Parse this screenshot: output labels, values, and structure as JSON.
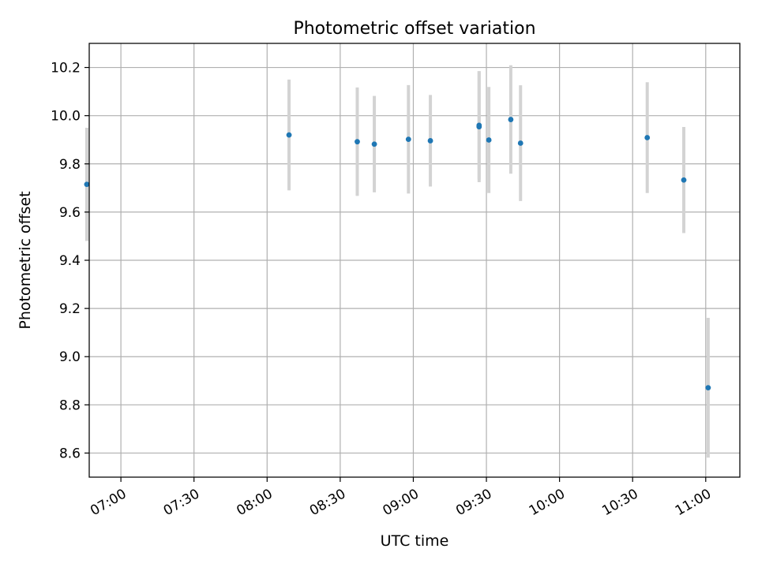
{
  "colors": {
    "point": "#1f77b4",
    "errorbar": "#d3d3d3",
    "grid": "#b0b0b0",
    "axes": "#000000",
    "background": "#ffffff"
  },
  "chart_data": {
    "type": "scatter",
    "title": "Photometric offset variation",
    "xlabel": "UTC time",
    "ylabel": "Photometric offset",
    "x_is_time": true,
    "xlim": [
      "06:47",
      "11:14"
    ],
    "ylim": [
      8.5,
      10.3
    ],
    "xticks": [
      "07:00",
      "07:30",
      "08:00",
      "08:30",
      "09:00",
      "09:30",
      "10:00",
      "10:30",
      "11:00"
    ],
    "yticks": [
      "8.6",
      "8.8",
      "9.0",
      "9.2",
      "9.4",
      "9.6",
      "9.8",
      "10.0",
      "10.2"
    ],
    "grid": true,
    "legend": false,
    "series": [
      {
        "points": [
          {
            "time": "06:46",
            "y": 9.715,
            "err": 0.235
          },
          {
            "time": "08:09",
            "y": 9.92,
            "err": 0.23
          },
          {
            "time": "08:37",
            "y": 9.892,
            "err": 0.225
          },
          {
            "time": "08:44",
            "y": 9.882,
            "err": 0.2
          },
          {
            "time": "08:58",
            "y": 9.902,
            "err": 0.225
          },
          {
            "time": "09:07",
            "y": 9.896,
            "err": 0.19
          },
          {
            "time": "09:27",
            "y": 9.96,
            "err": 0.225
          },
          {
            "time": "09:27",
            "y": 9.954,
            "err": 0.23
          },
          {
            "time": "09:31",
            "y": 9.899,
            "err": 0.22
          },
          {
            "time": "09:40",
            "y": 9.984,
            "err": 0.225
          },
          {
            "time": "09:44",
            "y": 9.886,
            "err": 0.24
          },
          {
            "time": "10:36",
            "y": 9.909,
            "err": 0.23
          },
          {
            "time": "10:51",
            "y": 9.733,
            "err": 0.22
          },
          {
            "time": "11:01",
            "y": 8.871,
            "err": 0.29
          }
        ]
      }
    ]
  }
}
